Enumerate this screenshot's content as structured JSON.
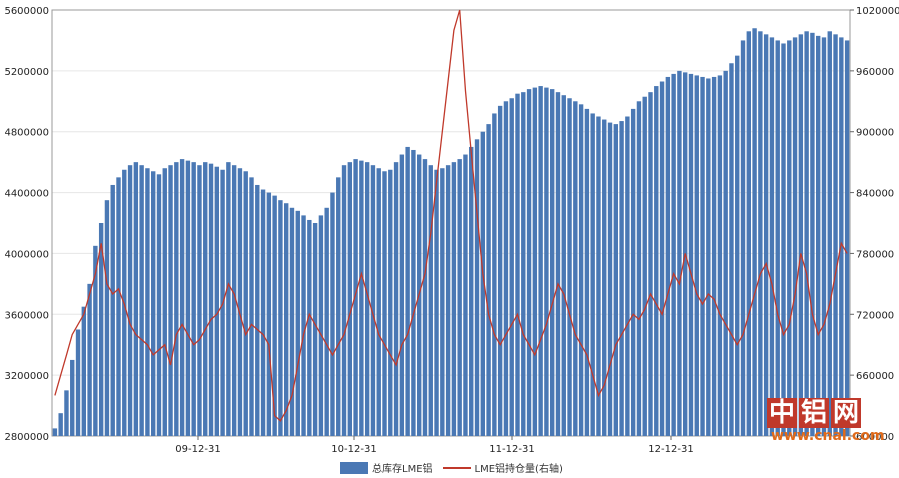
{
  "chart_data": {
    "type": "bar+line",
    "left_axis": {
      "ticks": [
        "2800000",
        "3200000",
        "3600000",
        "4000000",
        "4400000",
        "4800000",
        "5200000",
        "5600000"
      ],
      "ylim": [
        2800000,
        5600000
      ]
    },
    "right_axis": {
      "ticks": [
        "600000",
        "660000",
        "720000",
        "780000",
        "840000",
        "900000",
        "960000",
        "1020000"
      ],
      "ylim": [
        600000,
        1020000
      ]
    },
    "x_ticks": [
      "09-12-31",
      "10-12-31",
      "11-12-31",
      "12-12-31"
    ],
    "series": [
      {
        "name": "总库存LME铝",
        "axis": "left",
        "type": "bar",
        "color": "#4a78b4",
        "values": [
          2850000,
          2950000,
          3100000,
          3300000,
          3500000,
          3650000,
          3800000,
          4050000,
          4200000,
          4350000,
          4450000,
          4500000,
          4550000,
          4580000,
          4600000,
          4580000,
          4560000,
          4540000,
          4520000,
          4560000,
          4580000,
          4600000,
          4620000,
          4610000,
          4600000,
          4580000,
          4600000,
          4590000,
          4570000,
          4550000,
          4600000,
          4580000,
          4560000,
          4540000,
          4500000,
          4450000,
          4420000,
          4400000,
          4380000,
          4350000,
          4330000,
          4300000,
          4280000,
          4250000,
          4220000,
          4200000,
          4250000,
          4300000,
          4400000,
          4500000,
          4580000,
          4600000,
          4620000,
          4610000,
          4600000,
          4580000,
          4560000,
          4540000,
          4550000,
          4600000,
          4650000,
          4700000,
          4680000,
          4650000,
          4620000,
          4580000,
          4550000,
          4560000,
          4580000,
          4600000,
          4620000,
          4650000,
          4700000,
          4750000,
          4800000,
          4850000,
          4920000,
          4970000,
          5000000,
          5020000,
          5050000,
          5060000,
          5080000,
          5090000,
          5100000,
          5090000,
          5080000,
          5060000,
          5040000,
          5020000,
          5000000,
          4980000,
          4950000,
          4920000,
          4900000,
          4880000,
          4860000,
          4850000,
          4870000,
          4900000,
          4950000,
          5000000,
          5030000,
          5060000,
          5100000,
          5130000,
          5160000,
          5180000,
          5200000,
          5190000,
          5180000,
          5170000,
          5160000,
          5150000,
          5160000,
          5170000,
          5200000,
          5250000,
          5300000,
          5400000,
          5460000,
          5480000,
          5460000,
          5440000,
          5420000,
          5400000,
          5380000,
          5400000,
          5420000,
          5440000,
          5460000,
          5450000,
          5430000,
          5420000,
          5460000,
          5440000,
          5420000,
          5400000
        ]
      },
      {
        "name": "LME铝持仓量(右轴)",
        "axis": "right",
        "type": "line",
        "color": "#c0392b",
        "values": [
          640000,
          660000,
          680000,
          700000,
          710000,
          720000,
          740000,
          760000,
          790000,
          750000,
          740000,
          745000,
          730000,
          710000,
          700000,
          695000,
          690000,
          680000,
          685000,
          690000,
          670000,
          700000,
          710000,
          700000,
          690000,
          695000,
          705000,
          715000,
          720000,
          730000,
          750000,
          740000,
          720000,
          700000,
          710000,
          705000,
          700000,
          690000,
          620000,
          615000,
          625000,
          640000,
          670000,
          700000,
          720000,
          710000,
          700000,
          690000,
          680000,
          690000,
          700000,
          720000,
          740000,
          760000,
          740000,
          720000,
          700000,
          690000,
          680000,
          670000,
          690000,
          700000,
          720000,
          740000,
          760000,
          800000,
          850000,
          900000,
          950000,
          1000000,
          1020000,
          940000,
          880000,
          820000,
          760000,
          720000,
          700000,
          690000,
          700000,
          710000,
          720000,
          700000,
          690000,
          680000,
          695000,
          710000,
          730000,
          750000,
          740000,
          720000,
          700000,
          690000,
          680000,
          660000,
          640000,
          650000,
          670000,
          690000,
          700000,
          710000,
          720000,
          715000,
          725000,
          740000,
          730000,
          720000,
          740000,
          760000,
          750000,
          780000,
          760000,
          740000,
          730000,
          740000,
          735000,
          720000,
          710000,
          700000,
          690000,
          700000,
          720000,
          740000,
          760000,
          770000,
          750000,
          720000,
          700000,
          710000,
          740000,
          780000,
          760000,
          720000,
          700000,
          710000,
          730000,
          760000,
          790000,
          780000
        ]
      }
    ],
    "grid": true,
    "legend_position": "bottom"
  },
  "legend": {
    "bar_label": "总库存LME铝",
    "line_label": "LME铝持仓量(右轴)"
  },
  "watermark": {
    "chars": [
      "中",
      "铝",
      "网"
    ],
    "url": "www.cnal.com",
    "color": "#c0392b",
    "url_color": "#e06a1a"
  }
}
